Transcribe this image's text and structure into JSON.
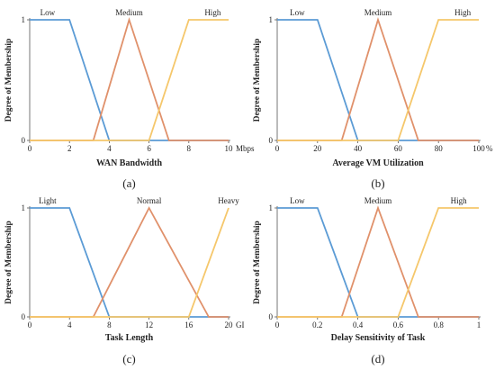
{
  "chart_data": [
    {
      "type": "line",
      "panel_label": "(a)",
      "xlabel": "WAN Bandwidth",
      "ylabel": "Degree of Membership",
      "unit": "Mbps",
      "xlim": [
        0,
        10
      ],
      "ylim": [
        0,
        1
      ],
      "xticks": [
        0,
        2,
        4,
        6,
        8,
        10
      ],
      "xtick_labels": [
        "0",
        "2",
        "4",
        "6",
        "8",
        "10"
      ],
      "yticks": [
        0,
        1
      ],
      "ytick_labels": [
        "0",
        "1"
      ],
      "series": [
        {
          "name": "Low",
          "color": "#5b9bd5",
          "x": [
            0,
            2,
            4,
            10
          ],
          "y": [
            1,
            1,
            0,
            0
          ]
        },
        {
          "name": "Medium",
          "color": "#e0916b",
          "x": [
            0,
            3.2,
            5,
            7,
            10
          ],
          "y": [
            0,
            0,
            1,
            0,
            0
          ]
        },
        {
          "name": "High",
          "color": "#f5c76b",
          "x": [
            0,
            6,
            8,
            10
          ],
          "y": [
            0,
            0,
            1,
            1
          ]
        }
      ],
      "label_x": [
        0.9,
        5,
        9.2
      ]
    },
    {
      "type": "line",
      "panel_label": "(b)",
      "xlabel": "Average VM Utilization",
      "ylabel": "Degree of Membership",
      "unit": "%",
      "xlim": [
        0,
        100
      ],
      "ylim": [
        0,
        1
      ],
      "xticks": [
        0,
        20,
        40,
        60,
        80,
        100
      ],
      "xtick_labels": [
        "0",
        "20",
        "40",
        "60",
        "80",
        "100"
      ],
      "yticks": [
        0,
        1
      ],
      "ytick_labels": [
        "0",
        "1"
      ],
      "series": [
        {
          "name": "Low",
          "color": "#5b9bd5",
          "x": [
            0,
            20,
            40,
            100
          ],
          "y": [
            1,
            1,
            0,
            0
          ]
        },
        {
          "name": "Medium",
          "color": "#e0916b",
          "x": [
            0,
            32,
            50,
            70,
            100
          ],
          "y": [
            0,
            0,
            1,
            0,
            0
          ]
        },
        {
          "name": "High",
          "color": "#f5c76b",
          "x": [
            0,
            60,
            80,
            100
          ],
          "y": [
            0,
            0,
            1,
            1
          ]
        }
      ],
      "label_x": [
        10,
        50,
        92
      ]
    },
    {
      "type": "line",
      "panel_label": "(c)",
      "xlabel": "Task Length",
      "ylabel": "Degree of Membership",
      "unit": "GI",
      "xlim": [
        0,
        20
      ],
      "ylim": [
        0,
        1
      ],
      "xticks": [
        0,
        4,
        8,
        12,
        16,
        20
      ],
      "xtick_labels": [
        "0",
        "4",
        "8",
        "12",
        "16",
        "20"
      ],
      "yticks": [
        0,
        1
      ],
      "ytick_labels": [
        "0",
        "1"
      ],
      "series": [
        {
          "name": "Light",
          "color": "#5b9bd5",
          "x": [
            0,
            4,
            8,
            20
          ],
          "y": [
            1,
            1,
            0,
            0
          ]
        },
        {
          "name": "Normal",
          "color": "#e0916b",
          "x": [
            0,
            6.4,
            12,
            18,
            20
          ],
          "y": [
            0,
            0,
            1,
            0,
            0
          ]
        },
        {
          "name": "Heavy",
          "color": "#f5c76b",
          "x": [
            0,
            16,
            20
          ],
          "y": [
            0,
            0,
            1
          ]
        }
      ],
      "label_x": [
        1.8,
        12,
        20
      ]
    },
    {
      "type": "line",
      "panel_label": "(d)",
      "xlabel": "Delay Sensitivity of Task",
      "ylabel": "Degree of Membership",
      "unit": "",
      "xlim": [
        0,
        1
      ],
      "ylim": [
        0,
        1
      ],
      "xticks": [
        0,
        0.2,
        0.4,
        0.6,
        0.8,
        1
      ],
      "xtick_labels": [
        "0",
        "0.2",
        "0.4",
        "0.6",
        "0.8",
        "1"
      ],
      "yticks": [
        0,
        1
      ],
      "ytick_labels": [
        "0",
        "1"
      ],
      "series": [
        {
          "name": "Low",
          "color": "#5b9bd5",
          "x": [
            0,
            0.2,
            0.4,
            1
          ],
          "y": [
            1,
            1,
            0,
            0
          ]
        },
        {
          "name": "Medium",
          "color": "#e0916b",
          "x": [
            0,
            0.32,
            0.5,
            0.7,
            1
          ],
          "y": [
            0,
            0,
            1,
            0,
            0
          ]
        },
        {
          "name": "High",
          "color": "#f5c76b",
          "x": [
            0,
            0.6,
            0.8,
            1
          ],
          "y": [
            0,
            0,
            1,
            1
          ]
        }
      ],
      "label_x": [
        0.1,
        0.5,
        0.9
      ]
    }
  ]
}
